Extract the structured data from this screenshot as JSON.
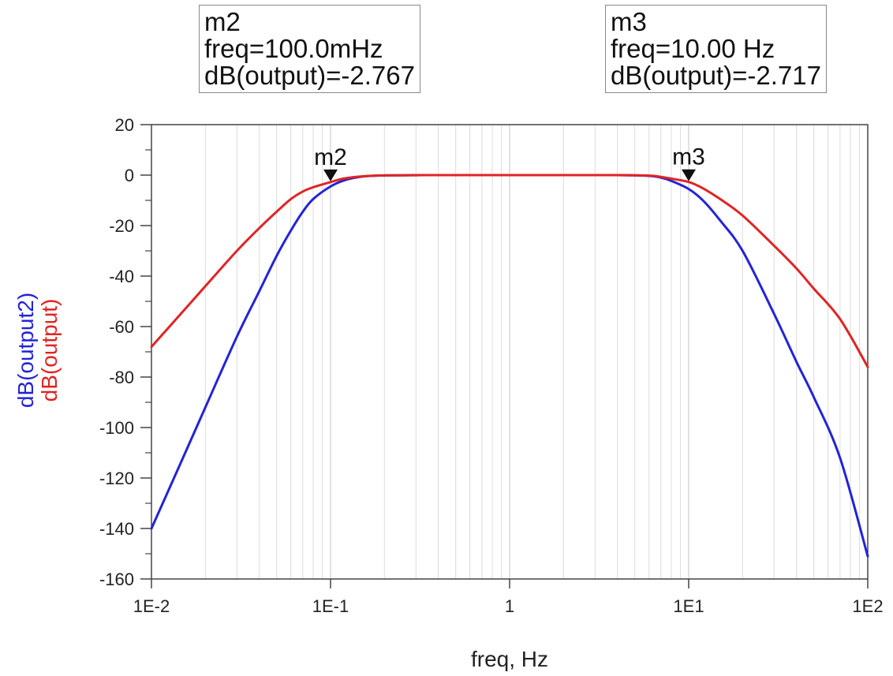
{
  "chart_data": {
    "type": "line",
    "xscale": "log",
    "xlim": [
      0.01,
      100
    ],
    "ylim": [
      -160,
      20
    ],
    "xlabel": "freq, Hz",
    "ylabels": [
      {
        "text": "dB(output2)",
        "color": "#2323d8"
      },
      {
        "text": "dB(output)",
        "color": "#e02424"
      }
    ],
    "xticks": [
      {
        "value": 0.01,
        "label": "1E-2"
      },
      {
        "value": 0.1,
        "label": "1E-1"
      },
      {
        "value": 1,
        "label": "1"
      },
      {
        "value": 10,
        "label": "1E1"
      },
      {
        "value": 100,
        "label": "1E2"
      }
    ],
    "yticks": [
      20,
      0,
      -20,
      -40,
      -60,
      -80,
      -100,
      -120,
      -140,
      -160
    ],
    "grid": true,
    "series": [
      {
        "name": "dB(output)",
        "color": "#e02424",
        "x": [
          0.01,
          0.015,
          0.02,
          0.03,
          0.04,
          0.05,
          0.06,
          0.07,
          0.08,
          0.1,
          0.12,
          0.15,
          0.2,
          0.5,
          1,
          2,
          4,
          6,
          7,
          8,
          10,
          12,
          15,
          20,
          30,
          40,
          50,
          70,
          100
        ],
        "y": [
          -68,
          -54,
          -44,
          -30,
          -21,
          -14.5,
          -9.5,
          -6.5,
          -4.8,
          -2.767,
          -1.3,
          -0.5,
          -0.1,
          0,
          0,
          0,
          0,
          -0.2,
          -0.7,
          -1.4,
          -2.717,
          -5.2,
          -9.5,
          -16,
          -28,
          -37,
          -45,
          -57,
          -76
        ]
      },
      {
        "name": "dB(output2)",
        "color": "#2323d8",
        "x": [
          0.01,
          0.015,
          0.02,
          0.03,
          0.04,
          0.05,
          0.06,
          0.07,
          0.08,
          0.1,
          0.12,
          0.15,
          0.2,
          0.5,
          1,
          2,
          4,
          6,
          7,
          8,
          10,
          12,
          15,
          20,
          30,
          40,
          50,
          70,
          100
        ],
        "y": [
          -140,
          -112,
          -92,
          -64,
          -46,
          -32,
          -22,
          -14.5,
          -9.5,
          -4.5,
          -2,
          -0.6,
          -0.1,
          0,
          0,
          0,
          0,
          -0.3,
          -1,
          -2.3,
          -5.5,
          -10,
          -18,
          -30,
          -55,
          -74,
          -88,
          -112,
          -151
        ]
      }
    ]
  },
  "markers": [
    {
      "id": "m2",
      "label": "m2",
      "freq": 0.1,
      "freq_text": "freq=100.0mHz",
      "value_text": "dB(output)=-2.767",
      "y": -2.767
    },
    {
      "id": "m3",
      "label": "m3",
      "freq": 10,
      "freq_text": "freq=10.00 Hz",
      "value_text": "dB(output)=-2.717",
      "y": -2.717
    }
  ]
}
